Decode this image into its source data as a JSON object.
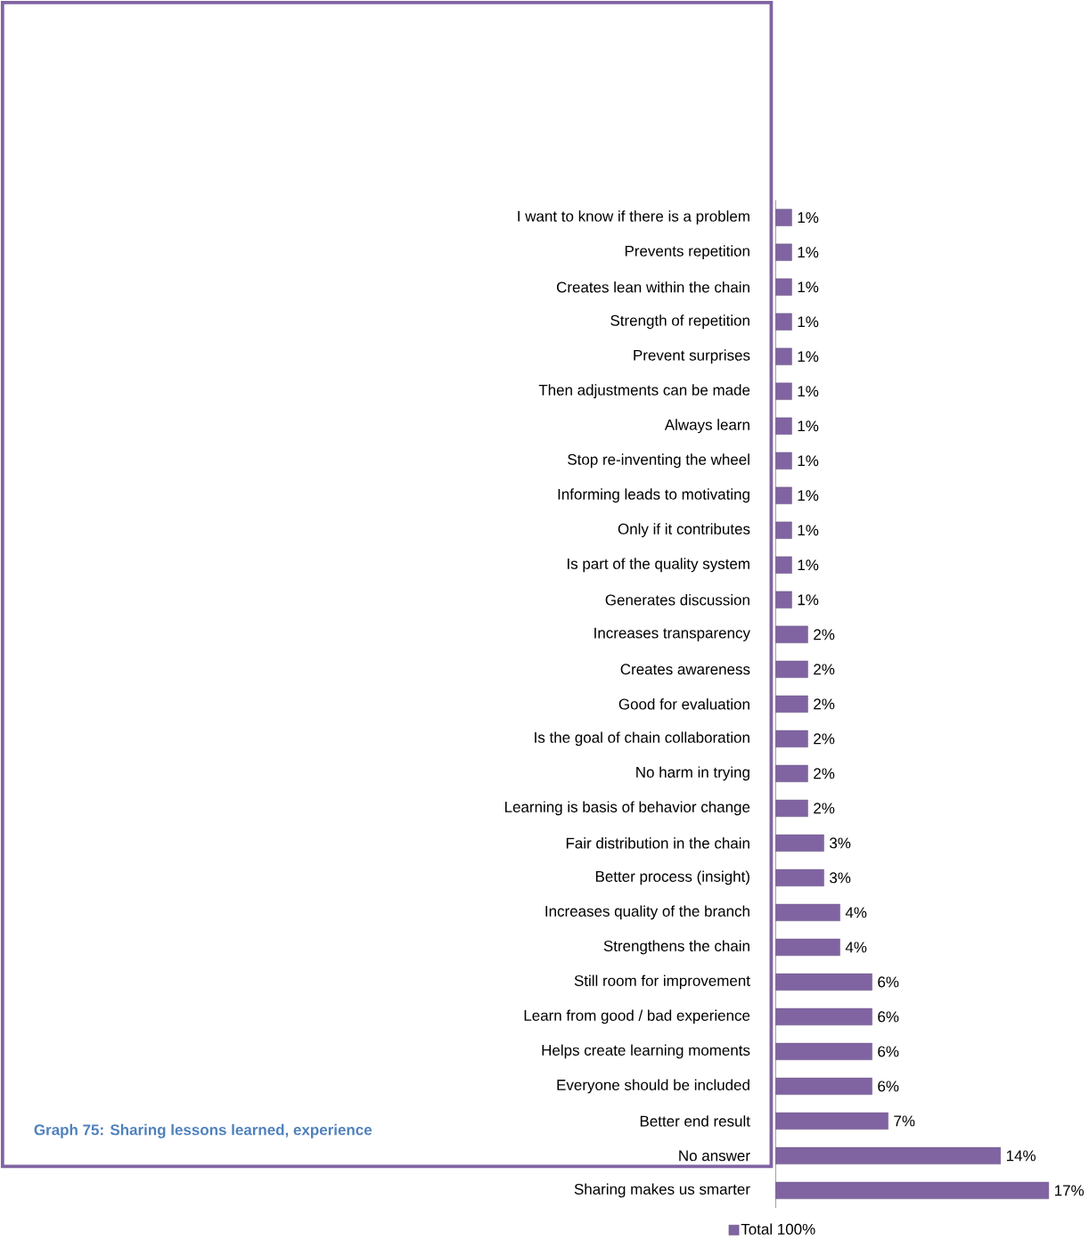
{
  "chart_data": {
    "type": "bar",
    "orientation": "horizontal",
    "categories": [
      "I want to know if there is a problem",
      "Prevents repetition",
      "Creates lean within the chain",
      "Strength of repetition",
      "Prevent surprises",
      "Then adjustments can be made",
      "Always learn",
      "Stop re-inventing the wheel",
      "Informing leads to motivating",
      "Only if it contributes",
      "Is part of the quality system",
      "Generates discussion",
      "Increases transparency",
      "Creates awareness",
      "Good for evaluation",
      "Is the goal of chain collaboration",
      "No harm in trying",
      "Learning is basis of behavior change",
      "Fair distribution in the chain",
      "Better process (insight)",
      "Increases quality of the branch",
      "Strengthens the chain",
      "Still room for improvement",
      "Learn from good / bad experience",
      "Helps create learning moments",
      "Everyone should be included",
      "Better end result",
      "No answer",
      "Sharing makes us smarter"
    ],
    "series": [
      {
        "name": "Total 100%",
        "color": "#8064a2",
        "values": [
          1,
          1,
          1,
          1,
          1,
          1,
          1,
          1,
          1,
          1,
          1,
          1,
          2,
          2,
          2,
          2,
          2,
          2,
          3,
          3,
          4,
          4,
          6,
          6,
          6,
          6,
          7,
          14,
          17
        ],
        "value_labels": [
          "1%",
          "1%",
          "1%",
          "1%",
          "1%",
          "1%",
          "1%",
          "1%",
          "1%",
          "1%",
          "1%",
          "1%",
          "2%",
          "2%",
          "2%",
          "2%",
          "2%",
          "2%",
          "3%",
          "3%",
          "4%",
          "4%",
          "6%",
          "6%",
          "6%",
          "6%",
          "7%",
          "14%",
          "17%"
        ]
      }
    ],
    "legend": "bottom",
    "annotations": [
      "Graph 75: Sharing lessons learned, experience"
    ]
  }
}
